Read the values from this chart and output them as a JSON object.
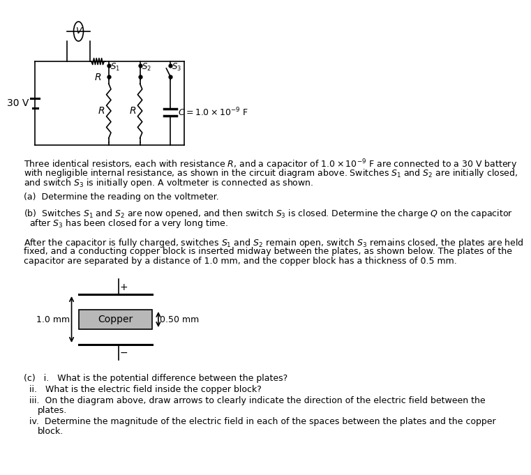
{
  "background_color": "#ffffff",
  "text_color": "#000000",
  "battery_label": "30 V",
  "voltmeter_label": "V",
  "series_r_label": "$R$",
  "s1_label": "$S_1$",
  "s2_label": "$S_2$",
  "s3_label": "$S_3$",
  "r1_label": "$R$",
  "r2_label": "$R$",
  "capacitor_label": "$C = 1.0 \\times 10^{-9}$ F",
  "copper_label": "Copper",
  "dim_left": "1.0 mm",
  "dim_right": "0.50 mm",
  "plus_label": "+",
  "minus_label": "−",
  "part_a": "(a)  Determine the reading on the voltmeter.",
  "part_b_1": "(b)  Switches $S_1$ and $S_2$ are now opened, and then switch $S_3$ is closed. Determine the charge $Q$ on the capacitor",
  "part_b_2": "after $S_3$ has been closed for a very long time.",
  "para2_1": "After the capacitor is fully charged, switches $S_1$ and $S_2$ remain open, switch $S_3$ remains closed, the plates are held",
  "para2_2": "fixed, and a conducting copper block is inserted midway between the plates, as shown below. The plates of the",
  "para2_3": "capacitor are separated by a distance of 1.0 mm, and the copper block has a thickness of 0.5 mm.",
  "part_c_i": "i.   What is the potential difference between the plates?",
  "part_c_ii": "ii.   What is the electric field inside the copper block?",
  "part_c_iii_1": "iii.  On the diagram above, draw arrows to clearly indicate the direction of the electric field between the",
  "part_c_iii_2": "plates.",
  "part_c_iv_1": "iv.  Determine the magnitude of the electric field in each of the spaces between the plates and the copper",
  "part_c_iv_2": "block.",
  "para1_1": "Three identical resistors, each with resistance $R$, and a capacitor of $1.0 \\times 10^{-9}$ F are connected to a 30 V battery",
  "para1_2": "with negligible internal resistance, as shown in the circuit diagram above. Switches $S_1$ and $S_2$ are initially closed,",
  "para1_3": "and switch $S_3$ is initially open. A voltmeter is connected as shown."
}
